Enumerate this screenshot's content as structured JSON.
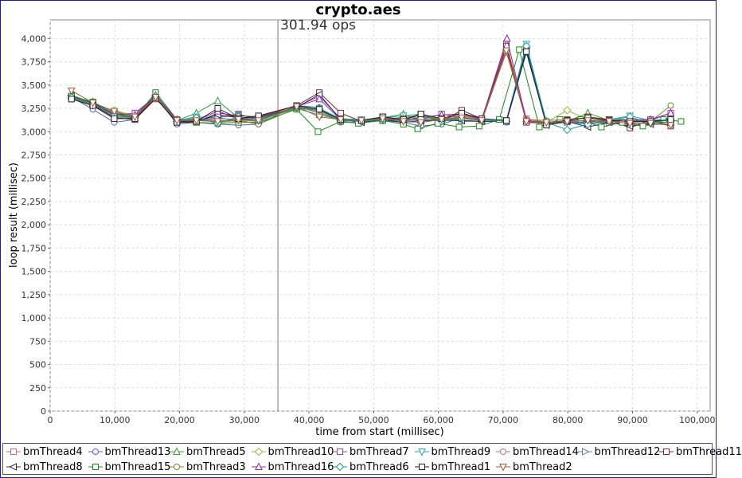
{
  "chart_data": {
    "type": "line",
    "title": "crypto.aes",
    "xlabel": "time from start (millisec)",
    "ylabel": "loop result (millisec)",
    "xlim": [
      0,
      102000
    ],
    "ylim": [
      0,
      4200
    ],
    "x_ticks": [
      0,
      10000,
      20000,
      30000,
      40000,
      50000,
      60000,
      70000,
      80000,
      90000,
      100000
    ],
    "x_tick_labels": [
      "0",
      "10,000",
      "20,000",
      "30,000",
      "40,000",
      "50,000",
      "60,000",
      "70,000",
      "80,000",
      "90,000",
      "100,000"
    ],
    "y_ticks": [
      0,
      250,
      500,
      750,
      1000,
      1250,
      1500,
      1750,
      2000,
      2250,
      2500,
      2750,
      3000,
      3250,
      3500,
      3750,
      4000
    ],
    "y_tick_labels": [
      "0",
      "250",
      "500",
      "750",
      "1,000",
      "1,250",
      "1,500",
      "1,750",
      "2,000",
      "2,250",
      "2,500",
      "2,750",
      "3,000",
      "3,250",
      "3,500",
      "3,750",
      "4,000"
    ],
    "grid": true,
    "legend_position": "bottom",
    "annotation": {
      "text": "301.94 ops",
      "x": 35200
    },
    "series": [
      {
        "name": "bmThread4",
        "color": "#d26c6c",
        "marker": "square",
        "x": [
          3300,
          6600,
          9900,
          13100,
          16300,
          19600,
          22600,
          25900,
          29100,
          32200,
          38100,
          41600,
          44900,
          48100,
          51400,
          54600,
          57300,
          60500,
          63600,
          66700,
          70500,
          73600,
          76700,
          79900,
          83100,
          86400,
          89600,
          92800,
          95900
        ],
        "y": [
          3350,
          3300,
          3150,
          3130,
          3350,
          3130,
          3120,
          3150,
          3120,
          3150,
          3280,
          3200,
          3120,
          3120,
          3130,
          3150,
          3170,
          3130,
          3180,
          3130,
          3950,
          3140,
          3100,
          3120,
          3100,
          3130,
          3100,
          3120,
          3100
        ]
      },
      {
        "name": "bmThread13",
        "color": "#4f5fc4",
        "marker": "circle",
        "x": [
          3300,
          6600,
          9900,
          13100,
          16300,
          19600,
          22600,
          25900,
          29100,
          32200,
          38100,
          41600,
          44900,
          48100,
          51400,
          54600,
          57300,
          60500,
          63600,
          66700,
          70500,
          73600,
          76700,
          79900,
          83100,
          86400,
          89600,
          92800,
          95900
        ],
        "y": [
          3370,
          3240,
          3100,
          3130,
          3380,
          3080,
          3100,
          3080,
          3070,
          3080,
          3280,
          3260,
          3100,
          3100,
          3120,
          3100,
          3060,
          3080,
          3150,
          3130,
          3100,
          3850,
          3080,
          3100,
          3080,
          3110,
          3120,
          3110,
          3150
        ]
      },
      {
        "name": "bmThread5",
        "color": "#3a9c3a",
        "marker": "triangle-up",
        "x": [
          3300,
          6600,
          9900,
          13100,
          16300,
          19600,
          22600,
          25900,
          29100,
          32200,
          38100,
          41600,
          44900,
          48100,
          51400,
          54600,
          57300,
          60500,
          63600,
          66700,
          70500,
          73600,
          76700,
          79900,
          83100,
          86400,
          89600,
          92800,
          95900
        ],
        "y": [
          3380,
          3320,
          3200,
          3150,
          3370,
          3120,
          3200,
          3330,
          3150,
          3120,
          3250,
          3180,
          3130,
          3110,
          3150,
          3190,
          3120,
          3140,
          3120,
          3110,
          3860,
          3120,
          3090,
          3110,
          3200,
          3120,
          3120,
          3100,
          3120
        ]
      },
      {
        "name": "bmThread10",
        "color": "#9ab83c",
        "marker": "diamond",
        "x": [
          3300,
          6600,
          9900,
          13100,
          16300,
          19600,
          22600,
          25900,
          29100,
          32200,
          38100,
          41600,
          44900,
          48100,
          51400,
          54600,
          57300,
          60500,
          63600,
          66700,
          70500,
          73600,
          76700,
          79900,
          83100,
          86400,
          89600,
          92800,
          95900
        ],
        "y": [
          3360,
          3280,
          3230,
          3170,
          3360,
          3110,
          3140,
          3100,
          3120,
          3110,
          3260,
          3230,
          3110,
          3120,
          3120,
          3160,
          3150,
          3130,
          3160,
          3120,
          3880,
          3110,
          3100,
          3230,
          3130,
          3120,
          3130,
          3110,
          3070
        ]
      },
      {
        "name": "bmThread7",
        "color": "#9646b4",
        "marker": "square",
        "x": [
          3300,
          6600,
          9900,
          13100,
          16300,
          19600,
          22600,
          25900,
          29100,
          32200,
          38100,
          41600,
          44900,
          48100,
          51400,
          54600,
          57300,
          60500,
          63600,
          66700,
          70500,
          73600,
          76700,
          79900,
          83100,
          86400,
          89600,
          92800,
          95900
        ],
        "y": [
          3380,
          3300,
          3180,
          3200,
          3380,
          3110,
          3130,
          3160,
          3190,
          3130,
          3270,
          3380,
          3140,
          3110,
          3120,
          3140,
          3130,
          3190,
          3150,
          3120,
          3900,
          3110,
          3100,
          3120,
          3090,
          3110,
          3120,
          3120,
          3200
        ]
      },
      {
        "name": "bmThread9",
        "color": "#2aa4b4",
        "marker": "triangle-down",
        "x": [
          3300,
          6600,
          9900,
          13100,
          16300,
          19600,
          22600,
          25900,
          29100,
          32200,
          38100,
          41600,
          44900,
          48100,
          51400,
          54600,
          57300,
          60500,
          63600,
          66700,
          70500,
          73600,
          76700,
          79900,
          83100,
          86400,
          89600,
          92800,
          95900
        ],
        "y": [
          3370,
          3290,
          3170,
          3150,
          3400,
          3120,
          3160,
          3150,
          3180,
          3140,
          3260,
          3250,
          3140,
          3130,
          3150,
          3170,
          3190,
          3130,
          3140,
          3120,
          3120,
          3940,
          3100,
          3110,
          3080,
          3130,
          3170,
          3120,
          3140
        ]
      },
      {
        "name": "bmThread14",
        "color": "#b07a7a",
        "marker": "circle",
        "x": [
          3300,
          6600,
          9900,
          13100,
          16300,
          19600,
          22600,
          25900,
          29100,
          32200,
          38100,
          41600,
          44900,
          48100,
          51400,
          54600,
          57300,
          60500,
          63600,
          66700,
          70500,
          73600,
          76700,
          79900,
          83100,
          86400,
          89600,
          92800,
          95900
        ],
        "y": [
          3360,
          3280,
          3160,
          3140,
          3360,
          3110,
          3130,
          3120,
          3110,
          3120,
          3260,
          3220,
          3120,
          3110,
          3130,
          3140,
          3120,
          3120,
          3200,
          3130,
          3850,
          3120,
          3100,
          3110,
          3110,
          3110,
          3100,
          3110,
          3060
        ]
      },
      {
        "name": "bmThread12",
        "color": "#5e7ab0",
        "marker": "triangle-right",
        "x": [
          3300,
          6600,
          9900,
          13100,
          16300,
          19600,
          22600,
          25900,
          29100,
          32200,
          38100,
          41600,
          44900,
          48100,
          51400,
          54600,
          57300,
          60500,
          63600,
          66700,
          70500,
          73600,
          76700,
          79900,
          83100,
          86400,
          89600,
          92800,
          95900
        ],
        "y": [
          3370,
          3300,
          3170,
          3150,
          3370,
          3110,
          3120,
          3140,
          3130,
          3120,
          3270,
          3200,
          3130,
          3100,
          3120,
          3120,
          3110,
          3140,
          3110,
          3110,
          3110,
          3900,
          3080,
          3100,
          3100,
          3090,
          3080,
          3100,
          3110
        ]
      },
      {
        "name": "bmThread11",
        "color": "#7a2a2a",
        "marker": "square",
        "x": [
          3300,
          6600,
          9900,
          13100,
          16300,
          19600,
          22600,
          25900,
          29100,
          32200,
          38100,
          41600,
          44900,
          48100,
          51400,
          54600,
          57300,
          60500,
          63600,
          66700,
          70500,
          73600,
          76700,
          79900,
          83100,
          86400,
          89600,
          92800,
          95900
        ],
        "y": [
          3380,
          3290,
          3150,
          3130,
          3360,
          3100,
          3100,
          3200,
          3170,
          3160,
          3280,
          3420,
          3200,
          3110,
          3160,
          3130,
          3180,
          3110,
          3230,
          3140,
          3920,
          3100,
          3090,
          3130,
          3160,
          3130,
          3040,
          3130,
          3060
        ]
      },
      {
        "name": "bmThread8",
        "color": "#2a2a50",
        "marker": "triangle-left",
        "x": [
          3300,
          6600,
          9900,
          13100,
          16300,
          19600,
          22600,
          25900,
          29100,
          32200,
          38100,
          41600,
          44900,
          48100,
          51400,
          54600,
          57300,
          60500,
          63600,
          66700,
          70500,
          73600,
          76700,
          79900,
          83100,
          86400,
          89600,
          92800,
          95900
        ],
        "y": [
          3390,
          3310,
          3190,
          3150,
          3390,
          3110,
          3110,
          3180,
          3150,
          3150,
          3260,
          3400,
          3130,
          3100,
          3130,
          3100,
          3120,
          3120,
          3120,
          3110,
          3110,
          3880,
          3070,
          3110,
          3050,
          3100,
          3060,
          3080,
          3080
        ]
      },
      {
        "name": "bmThread15",
        "color": "#1a8a1a",
        "marker": "square",
        "x": [
          3300,
          6600,
          9900,
          13100,
          16300,
          19600,
          22600,
          25900,
          29100,
          32200,
          38100,
          41400,
          44900,
          47600,
          51400,
          54600,
          56800,
          59900,
          63200,
          66300,
          69400,
          72500,
          75600,
          78800,
          82000,
          85200,
          88400,
          91600,
          94800,
          97500
        ],
        "y": [
          3380,
          3320,
          3190,
          3150,
          3420,
          3130,
          3100,
          3090,
          3100,
          3100,
          3240,
          3000,
          3110,
          3090,
          3120,
          3080,
          3030,
          3090,
          3050,
          3060,
          3130,
          3880,
          3050,
          3130,
          3130,
          3050,
          3100,
          3060,
          3130,
          3110
        ]
      },
      {
        "name": "bmThread3",
        "color": "#6c8c2a",
        "marker": "circle",
        "x": [
          3300,
          6600,
          9900,
          13100,
          16300,
          19600,
          22600,
          25900,
          29100,
          32200,
          38100,
          41600,
          44900,
          48100,
          51400,
          54600,
          57300,
          60500,
          63600,
          66700,
          70500,
          73600,
          76700,
          79900,
          83100,
          86400,
          89600,
          92800,
          95900
        ],
        "y": [
          3360,
          3290,
          3210,
          3160,
          3380,
          3120,
          3120,
          3110,
          3120,
          3080,
          3250,
          3230,
          3120,
          3120,
          3140,
          3150,
          3180,
          3120,
          3170,
          3120,
          3870,
          3130,
          3120,
          3130,
          3150,
          3120,
          3110,
          3110,
          3280
        ]
      },
      {
        "name": "bmThread16",
        "color": "#8a2ab0",
        "marker": "triangle-up",
        "x": [
          3300,
          6600,
          9900,
          13100,
          16300,
          19600,
          22600,
          25900,
          29100,
          32200,
          38100,
          41600,
          44900,
          48100,
          51400,
          54600,
          57300,
          60500,
          63600,
          66700,
          70600,
          73600,
          76700,
          79900,
          83100,
          86400,
          89600,
          92800,
          95900
        ],
        "y": [
          3380,
          3300,
          3190,
          3180,
          3390,
          3130,
          3120,
          3220,
          3140,
          3120,
          3270,
          3350,
          3130,
          3120,
          3140,
          3130,
          3150,
          3180,
          3190,
          3130,
          4000,
          3120,
          3100,
          3120,
          3110,
          3120,
          3130,
          3130,
          3200
        ]
      },
      {
        "name": "bmThread6",
        "color": "#1a9a8a",
        "marker": "diamond",
        "x": [
          3300,
          6600,
          9900,
          13100,
          16300,
          19600,
          22600,
          25900,
          29100,
          32200,
          38100,
          41600,
          44900,
          48100,
          51400,
          54600,
          57300,
          60500,
          63600,
          66700,
          70500,
          73600,
          76700,
          79900,
          83100,
          86400,
          89600,
          92800,
          95900
        ],
        "y": [
          3370,
          3300,
          3170,
          3150,
          3380,
          3110,
          3150,
          3090,
          3160,
          3120,
          3260,
          3240,
          3120,
          3110,
          3130,
          3120,
          3140,
          3110,
          3140,
          3130,
          3110,
          3920,
          3100,
          3020,
          3080,
          3120,
          3160,
          3090,
          3130
        ]
      },
      {
        "name": "bmThread1",
        "color": "#222222",
        "marker": "square",
        "x": [
          3300,
          6600,
          9900,
          13100,
          16300,
          19600,
          22600,
          25900,
          29100,
          32200,
          38100,
          41600,
          44900,
          48100,
          51400,
          54600,
          57300,
          60500,
          63600,
          66700,
          70500,
          73600,
          76700,
          79900,
          83100,
          86400,
          89600,
          92800,
          95900
        ],
        "y": [
          3350,
          3280,
          3140,
          3140,
          3360,
          3100,
          3110,
          3250,
          3140,
          3170,
          3280,
          3240,
          3130,
          3120,
          3160,
          3130,
          3190,
          3140,
          3200,
          3140,
          3120,
          3860,
          3070,
          3120,
          3150,
          3120,
          3110,
          3110,
          3130
        ]
      },
      {
        "name": "bmThread2",
        "color": "#a05a3a",
        "marker": "triangle-down",
        "x": [
          3300,
          6600,
          9900,
          13100,
          16300,
          19600,
          22600,
          25900,
          29100,
          32200,
          38100,
          41600,
          44900,
          48100,
          51400,
          54600,
          57300,
          60500,
          63600,
          66700,
          70500,
          73600,
          76700,
          79900,
          83100,
          86400,
          89600,
          92800,
          95900
        ],
        "y": [
          3440,
          3310,
          3220,
          3160,
          3370,
          3120,
          3120,
          3110,
          3130,
          3120,
          3270,
          3160,
          3130,
          3120,
          3140,
          3110,
          3100,
          3130,
          3150,
          3120,
          3870,
          3110,
          3100,
          3110,
          3120,
          3110,
          3090,
          3090,
          3070
        ]
      }
    ]
  }
}
